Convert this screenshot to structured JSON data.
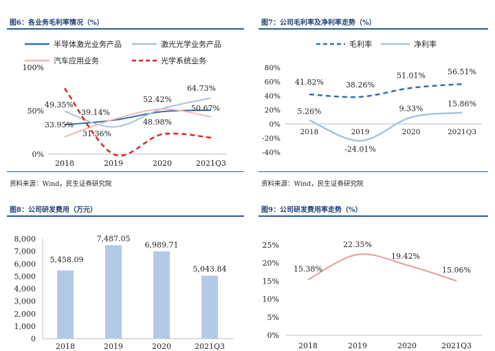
{
  "panels": {
    "fig6": {
      "title": "图6：各业务毛利率情况（%）",
      "source": "资料来源：Wind，民生证券研究院",
      "chart_data": {
        "type": "line",
        "categories": [
          "2018",
          "2019",
          "2020",
          "2021Q3"
        ],
        "ylim": [
          0,
          100
        ],
        "yticks": [
          "0%",
          "50%",
          "100%"
        ],
        "legend_position": "top",
        "series": [
          {
            "name": "半导体激光业务产品",
            "color": "#2f6db3",
            "style": "solid",
            "values": [
              33.95,
              39.14,
              48.98,
              50.67
            ]
          },
          {
            "name": "激光光学业务产品",
            "color": "#a8c3df",
            "style": "solid",
            "values": [
              49.35,
              31.36,
              52.42,
              64.73
            ]
          },
          {
            "name": "汽车应用业务",
            "color": "#f2b8b2",
            "style": "solid",
            "values": [
              20,
              40,
              52,
              43
            ]
          },
          {
            "name": "光学系统业务",
            "color": "#e02020",
            "style": "dashed",
            "values": [
              76,
              0,
              23,
              19
            ]
          }
        ],
        "data_labels": [
          "49.35%",
          "33.95%",
          "39.14%",
          "31.36%",
          "52.42%",
          "48.98%",
          "64.73%",
          "50.67%"
        ]
      }
    },
    "fig7": {
      "title": "图7：公司毛利率及净利率走势（%）",
      "source": "资料来源：Wind，民生证券研究院",
      "chart_data": {
        "type": "line",
        "categories": [
          "2018",
          "2019",
          "2020",
          "2021Q3"
        ],
        "ylim": [
          -40,
          80
        ],
        "yticks": [
          "-40%",
          "-20%",
          "0%",
          "20%",
          "40%",
          "60%",
          "80%"
        ],
        "legend_position": "top",
        "series": [
          {
            "name": "毛利率",
            "color": "#2f6db3",
            "style": "dashed",
            "values": [
              41.82,
              38.26,
              51.01,
              56.51
            ],
            "labels": [
              "41.82%",
              "38.26%",
              "51.01%",
              "56.51%"
            ]
          },
          {
            "name": "净利率",
            "color": "#a8c3df",
            "style": "solid",
            "values": [
              5.26,
              -24.01,
              9.33,
              15.86
            ],
            "labels": [
              "5.26%",
              "-24.01%",
              "9.33%",
              "15.86%"
            ]
          }
        ]
      }
    },
    "fig8": {
      "title": "图8：公司研发费用（万元）",
      "chart_data": {
        "type": "bar",
        "categories": [
          "2018",
          "2019",
          "2020",
          "2021Q3"
        ],
        "ylim": [
          0,
          8000
        ],
        "yticks": [
          "0",
          "1,000",
          "2,000",
          "3,000",
          "4,000",
          "5,000",
          "6,000",
          "7,000",
          "8,000"
        ],
        "series": [
          {
            "color": "#b4c9e3",
            "values": [
              5458.09,
              7487.05,
              6989.71,
              5043.84
            ],
            "labels": [
              "5,458.09",
              "7,487.05",
              "6,989.71",
              "5,043.84"
            ]
          }
        ]
      }
    },
    "fig9": {
      "title": "图9：公司研发费用率走势（%）",
      "chart_data": {
        "type": "line",
        "categories": [
          "2018",
          "2019",
          "2020",
          "2021Q3"
        ],
        "ylim": [
          0,
          25
        ],
        "yticks": [
          "0%",
          "5%",
          "10%",
          "15%",
          "20%",
          "25%"
        ],
        "series": [
          {
            "color": "#e89a9a",
            "style": "solid",
            "values": [
              15.38,
              22.35,
              19.42,
              15.06
            ],
            "labels": [
              "15.38%",
              "22.35%",
              "19.42%",
              "15.06%"
            ]
          }
        ]
      }
    }
  }
}
